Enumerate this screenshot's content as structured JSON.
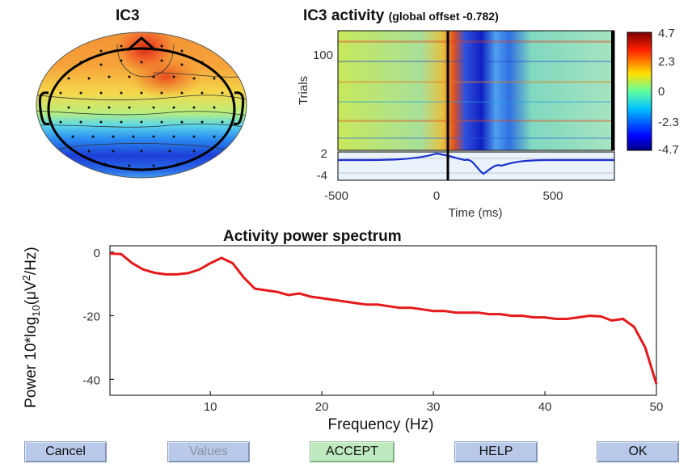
{
  "topomap": {
    "title": "IC3"
  },
  "erpimage": {
    "title": "IC3 activity",
    "subtitle": "(global offset -0.782)",
    "ylabel": "Trials",
    "trial_tick": "100",
    "xlabel": "Time (ms)",
    "x_ticks": [
      "-500",
      "0",
      "500"
    ],
    "erp_ticks": [
      "2",
      "-4"
    ],
    "colorbar_ticks": [
      "4.7",
      "2.3",
      "0",
      "-2.3",
      "-4.7"
    ],
    "colormap": [
      "#00007f",
      "#0000ff",
      "#00a0ff",
      "#00ffff",
      "#80ff80",
      "#ffff00",
      "#ff8000",
      "#ff0000",
      "#7f0000"
    ]
  },
  "chart_data": {
    "type": "line",
    "title": "Activity power spectrum",
    "xlabel": "Frequency (Hz)",
    "ylabel_prefix": "Power 10*log",
    "ylabel_sub": "10",
    "ylabel_mid": "(μV",
    "ylabel_sup": "2",
    "ylabel_suffix": "/Hz)",
    "xlim": [
      1,
      50
    ],
    "ylim": [
      -45,
      2
    ],
    "x_ticks": [
      10,
      20,
      30,
      40,
      50
    ],
    "y_ticks": [
      0,
      -20,
      -40
    ],
    "series": [
      {
        "color": "#e41a1c",
        "x": [
          1,
          2,
          3,
          4,
          5,
          6,
          7,
          8,
          9,
          10,
          11,
          12,
          13,
          14,
          15,
          16,
          17,
          18,
          19,
          20,
          21,
          22,
          23,
          24,
          25,
          26,
          27,
          28,
          29,
          30,
          31,
          32,
          33,
          34,
          35,
          36,
          37,
          38,
          39,
          40,
          41,
          42,
          43,
          44,
          45,
          46,
          47,
          48,
          49,
          50
        ],
        "y": [
          -0.5,
          -0.6,
          -3.5,
          -5.5,
          -6.5,
          -7,
          -7,
          -6.6,
          -5.5,
          -3.5,
          -1.8,
          -3.5,
          -8,
          -11.5,
          -12,
          -12.5,
          -13.5,
          -13,
          -14,
          -14.5,
          -15,
          -15.5,
          -16,
          -16.5,
          -16.5,
          -17,
          -17.5,
          -17.5,
          -18,
          -18.5,
          -18.5,
          -19,
          -19,
          -19,
          -19.5,
          -19.5,
          -20,
          -20,
          -20.5,
          -20.5,
          -21,
          -21,
          -20.5,
          -20,
          -20.2,
          -21.5,
          -21,
          -23.5,
          -30,
          -41.5
        ]
      }
    ]
  },
  "buttons": {
    "cancel": "Cancel",
    "values": "Values",
    "accept": "ACCEPT",
    "help": "HELP",
    "ok": "OK"
  }
}
